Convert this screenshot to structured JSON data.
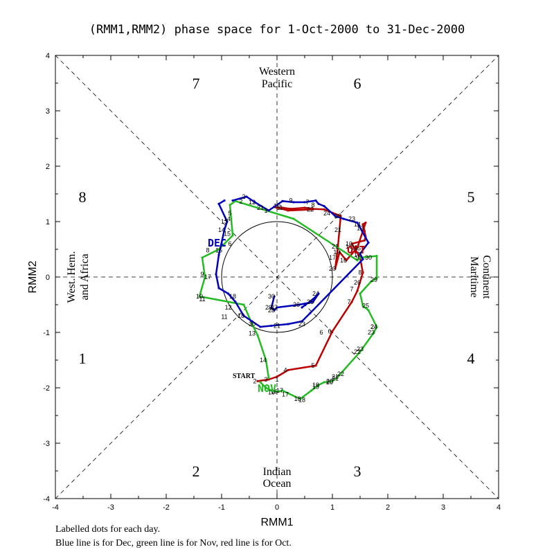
{
  "chart_data": {
    "type": "line",
    "title": "(RMM1,RMM2) phase space for  1-Oct-2000 to 31-Dec-2000",
    "xlabel": "RMM1",
    "ylabel": "RMM2",
    "xlim": [
      -4,
      4
    ],
    "ylim": [
      -4,
      4
    ],
    "ticks": [
      -4,
      -3,
      -2,
      -1,
      0,
      1,
      2,
      3,
      4
    ],
    "phase_labels": [
      "1",
      "2",
      "3",
      "4",
      "5",
      "6",
      "7",
      "8"
    ],
    "regions": {
      "top_line1": "Western",
      "top_line2": "Pacific",
      "bottom_line1": "Indian",
      "bottom_line2": "Ocean",
      "left_line1": "West. Hem.",
      "left_line2": "and Africa",
      "right_line1": "Maritime",
      "right_line2": "Continent"
    },
    "start_label": "START",
    "footnote_line1": "Labelled dots for each day.",
    "footnote_line2": "Blue line is for Dec, green line is for Nov, red line is for Oct.",
    "colors": {
      "oct": "#bb0000",
      "nov": "#22bb22",
      "dec": "#0000bb"
    },
    "series": [
      {
        "name": "Oct",
        "month_label": "OCT",
        "points": [
          [
            -0.35,
            -1.88
          ],
          [
            -0.15,
            -1.85
          ],
          [
            0.0,
            -1.8
          ],
          [
            0.2,
            -1.68
          ],
          [
            0.7,
            -1.6
          ],
          [
            1.0,
            -0.98
          ],
          [
            1.35,
            -0.45
          ],
          [
            1.45,
            -0.25
          ],
          [
            1.55,
            0.08
          ],
          [
            1.5,
            0.35
          ],
          [
            1.35,
            0.6
          ],
          [
            1.58,
            0.66
          ],
          [
            1.6,
            0.72
          ],
          [
            1.58,
            0.83
          ],
          [
            1.55,
            0.95
          ],
          [
            1.6,
            0.98
          ],
          [
            1.45,
            0.53
          ],
          [
            1.25,
            0.3
          ],
          [
            1.13,
            0.45
          ],
          [
            1.05,
            0.15
          ],
          [
            1.1,
            0.55
          ],
          [
            1.15,
            1.1
          ],
          [
            0.85,
            1.22
          ],
          [
            0.65,
            1.23
          ],
          [
            0.5,
            1.25
          ],
          [
            0.25,
            1.23
          ],
          [
            0.1,
            1.25
          ],
          [
            0.0,
            1.25
          ],
          [
            -0.05,
            1.27
          ],
          [
            0.2,
            1.2
          ],
          [
            0.65,
            1.22
          ]
        ],
        "day_labels": [
          "2",
          "3",
          "",
          "4",
          "5",
          "6",
          "7",
          "",
          "8",
          "9",
          "10",
          "",
          "",
          "",
          "",
          "",
          "11",
          "16",
          "19",
          "20",
          "21",
          "",
          "",
          "",
          "",
          "",
          "",
          "",
          "",
          "",
          "22"
        ]
      },
      {
        "name": "Nov",
        "month_label": "NOV",
        "points": [
          [
            -0.3,
            -1.9
          ],
          [
            -0.2,
            -2.0
          ],
          [
            -0.1,
            -2.05
          ],
          [
            0.0,
            -2.07
          ],
          [
            0.1,
            -2.05
          ],
          [
            0.2,
            -2.1
          ],
          [
            0.42,
            -2.2
          ],
          [
            0.62,
            -2.05
          ],
          [
            0.75,
            -1.95
          ],
          [
            0.85,
            -1.9
          ],
          [
            1.0,
            -1.88
          ],
          [
            1.1,
            -1.8
          ],
          [
            1.5,
            -1.35
          ],
          [
            1.75,
            -1.0
          ],
          [
            1.8,
            -0.9
          ],
          [
            1.65,
            -0.6
          ],
          [
            1.55,
            -0.52
          ],
          [
            1.5,
            -0.3
          ],
          [
            1.7,
            -0.08
          ],
          [
            1.8,
            -0.02
          ],
          [
            1.8,
            0.38
          ],
          [
            1.5,
            0.35
          ],
          [
            1.45,
            0.3
          ],
          [
            0.3,
            1.05
          ],
          [
            -0.75,
            1.37
          ],
          [
            -0.85,
            1.3
          ],
          [
            -0.8,
            0.75
          ],
          [
            -1.05,
            0.5
          ],
          [
            -1.35,
            0.35
          ],
          [
            -1.3,
            0.0
          ],
          [
            -1.4,
            -0.35
          ],
          [
            -0.6,
            -0.5
          ],
          [
            -0.45,
            -0.85
          ],
          [
            -0.35,
            -1.05
          ],
          [
            -0.2,
            -1.5
          ],
          [
            -0.15,
            -1.82
          ]
        ],
        "day_labels": [
          "",
          "",
          "",
          "16",
          "17",
          "",
          "18",
          "",
          "19",
          "",
          "20",
          "21",
          "22",
          "23",
          "24",
          "",
          "",
          "",
          "",
          "",
          "",
          "",
          "",
          "",
          "",
          "",
          "",
          "",
          "",
          "",
          "",
          "",
          "",
          "",
          "",
          ""
        ]
      },
      {
        "name": "Dec",
        "month_label": "DEC",
        "points": [
          [
            -0.8,
            1.38
          ],
          [
            -0.55,
            1.45
          ],
          [
            -0.4,
            1.35
          ],
          [
            -0.15,
            1.2
          ],
          [
            0.1,
            1.37
          ],
          [
            0.3,
            1.35
          ],
          [
            0.5,
            1.35
          ],
          [
            0.7,
            1.38
          ],
          [
            0.75,
            1.32
          ],
          [
            0.85,
            1.28
          ],
          [
            1.05,
            1.1
          ],
          [
            1.2,
            1.05
          ],
          [
            1.45,
            0.98
          ],
          [
            1.65,
            0.62
          ],
          [
            1.5,
            0.42
          ],
          [
            1.55,
            0.32
          ],
          [
            0.6,
            -0.65
          ],
          [
            0.45,
            -0.8
          ],
          [
            0.2,
            -0.85
          ],
          [
            -0.1,
            -0.88
          ],
          [
            -0.3,
            -0.9
          ],
          [
            -0.45,
            -0.8
          ],
          [
            -0.6,
            -0.7
          ],
          [
            -0.75,
            -0.45
          ],
          [
            -0.88,
            -0.3
          ],
          [
            -1.05,
            -0.2
          ],
          [
            -1.1,
            0.05
          ],
          [
            -1.05,
            0.4
          ],
          [
            -0.95,
            0.85
          ],
          [
            -0.9,
            1.0
          ],
          [
            -1.05,
            1.32
          ],
          [
            -0.95,
            1.38
          ]
        ],
        "day_labels": [
          "",
          "2",
          "12",
          "",
          "",
          "",
          "",
          "",
          "",
          "",
          "",
          "",
          "",
          "",
          "",
          "",
          "",
          "",
          "",
          "",
          "",
          "",
          "18",
          "",
          "",
          "",
          "",
          "",
          "14",
          "13",
          "",
          ""
        ]
      },
      {
        "name": "Dec-inner",
        "points": [
          [
            -0.05,
            -0.35
          ],
          [
            -0.1,
            -0.55
          ],
          [
            -0.05,
            -0.6
          ],
          [
            0.0,
            -0.55
          ],
          [
            0.4,
            -0.5
          ],
          [
            0.65,
            -0.45
          ],
          [
            0.75,
            -0.3
          ],
          [
            0.65,
            -0.4
          ],
          [
            0.45,
            -0.55
          ]
        ],
        "day_labels": [
          "30",
          "29",
          "28",
          "27",
          "26",
          "25",
          "24",
          "",
          ""
        ]
      }
    ],
    "extra_day_labels": [
      {
        "x": -0.8,
        "y": -0.35,
        "text": "18"
      },
      {
        "x": -0.88,
        "y": -0.55,
        "text": "12"
      },
      {
        "x": -0.95,
        "y": -0.72,
        "text": "11"
      },
      {
        "x": -0.45,
        "y": -0.85,
        "text": "30"
      },
      {
        "x": -0.45,
        "y": -1.02,
        "text": "13"
      },
      {
        "x": 0.0,
        "y": -0.88,
        "text": "21"
      },
      {
        "x": 0.45,
        "y": -0.85,
        "text": "23"
      },
      {
        "x": -0.25,
        "y": -1.5,
        "text": "14"
      },
      {
        "x": 0.8,
        "y": -1.0,
        "text": "6"
      },
      {
        "x": 1.35,
        "y": -0.22,
        "text": "7"
      },
      {
        "x": 1.45,
        "y": -0.1,
        "text": "26"
      },
      {
        "x": 1.6,
        "y": -0.52,
        "text": "25"
      },
      {
        "x": 1.75,
        "y": -0.05,
        "text": "29"
      },
      {
        "x": 1.45,
        "y": 0.52,
        "text": "15"
      },
      {
        "x": 1.3,
        "y": 0.55,
        "text": "16"
      },
      {
        "x": 1.0,
        "y": 0.35,
        "text": "17"
      },
      {
        "x": 1.45,
        "y": 0.4,
        "text": "17"
      },
      {
        "x": 1.5,
        "y": 0.88,
        "text": "13"
      },
      {
        "x": 1.45,
        "y": 0.95,
        "text": "14"
      },
      {
        "x": 1.65,
        "y": 0.35,
        "text": "30"
      },
      {
        "x": 1.35,
        "y": 1.05,
        "text": "23"
      },
      {
        "x": 1.1,
        "y": 1.1,
        "text": "28"
      },
      {
        "x": 0.55,
        "y": 1.35,
        "text": "7"
      },
      {
        "x": 0.65,
        "y": 1.3,
        "text": "8"
      },
      {
        "x": 0.25,
        "y": 1.38,
        "text": "9"
      },
      {
        "x": 0.0,
        "y": 1.28,
        "text": "10"
      },
      {
        "x": 0.05,
        "y": 1.25,
        "text": "11"
      },
      {
        "x": -0.3,
        "y": 1.25,
        "text": "21"
      },
      {
        "x": 0.9,
        "y": 1.15,
        "text": "24"
      },
      {
        "x": 1.1,
        "y": 0.85,
        "text": "21"
      },
      {
        "x": -0.2,
        "y": 1.2,
        "text": "1"
      },
      {
        "x": -0.65,
        "y": 1.36,
        "text": "2"
      },
      {
        "x": -1.05,
        "y": 0.48,
        "text": "16"
      },
      {
        "x": -1.25,
        "y": 0.48,
        "text": "8"
      },
      {
        "x": -1.35,
        "y": 0.05,
        "text": "9"
      },
      {
        "x": -1.4,
        "y": -0.35,
        "text": "10"
      },
      {
        "x": -1.35,
        "y": -0.4,
        "text": "11"
      },
      {
        "x": -1.25,
        "y": 0.0,
        "text": "17"
      },
      {
        "x": -0.9,
        "y": 1.05,
        "text": "14"
      },
      {
        "x": -0.85,
        "y": 0.6,
        "text": "6"
      },
      {
        "x": -0.9,
        "y": 0.78,
        "text": "15"
      },
      {
        "x": -0.85,
        "y": 1.15,
        "text": "5"
      },
      {
        "x": 0.0,
        "y": -1.85,
        "text": "1"
      },
      {
        "x": -0.1,
        "y": -2.08,
        "text": "16"
      },
      {
        "x": 0.15,
        "y": -2.12,
        "text": "17"
      },
      {
        "x": 0.45,
        "y": -2.22,
        "text": "18"
      },
      {
        "x": 0.7,
        "y": -1.98,
        "text": "19"
      },
      {
        "x": 0.95,
        "y": -1.9,
        "text": "20"
      },
      {
        "x": 1.05,
        "y": -1.83,
        "text": "21"
      },
      {
        "x": 1.15,
        "y": -1.75,
        "text": "22"
      },
      {
        "x": 1.5,
        "y": -1.3,
        "text": "23"
      },
      {
        "x": 1.75,
        "y": -0.9,
        "text": "24"
      }
    ]
  }
}
